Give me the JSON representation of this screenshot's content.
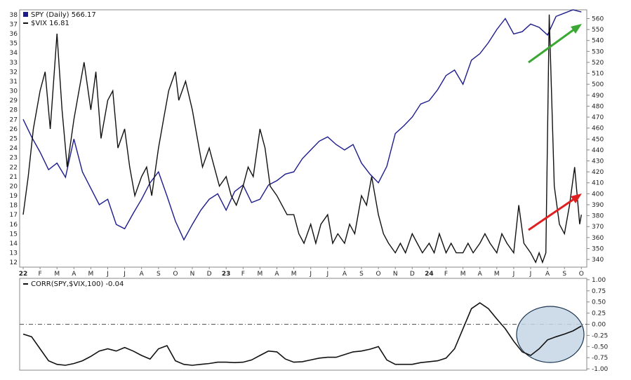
{
  "colors": {
    "spy": "#1c1c8c",
    "vix": "#111111",
    "corr": "#111111",
    "green_arrow": "#3aa832",
    "red_arrow": "#e02020",
    "circle_fill": "#c5d5e4",
    "circle_stroke": "#1a3550",
    "frame": "#888888",
    "zero_line": "#555555"
  },
  "legend": {
    "spy_label": "SPY (Daily) 566.17",
    "vix_label": "$VIX 16.81",
    "corr_label": "CORR(SPY,$VIX,100) -0.04"
  },
  "chart_data": [
    {
      "type": "line",
      "x_tick_labels": [
        "22",
        "F",
        "M",
        "A",
        "M",
        "J",
        "J",
        "A",
        "S",
        "O",
        "N",
        "D",
        "23",
        "F",
        "M",
        "A",
        "M",
        "J",
        "J",
        "A",
        "S",
        "O",
        "N",
        "D",
        "24",
        "F",
        "M",
        "A",
        "M",
        "J",
        "J",
        "A",
        "S",
        "O"
      ],
      "year_labels": [
        "22",
        "23",
        "24"
      ],
      "left_axis": {
        "series": "$VIX",
        "ylim": [
          11.5,
          38.5
        ],
        "ticks": [
          12,
          13,
          14,
          15,
          16,
          17,
          18,
          19,
          20,
          21,
          22,
          23,
          24,
          25,
          26,
          27,
          28,
          29,
          30,
          31,
          32,
          33,
          34,
          35,
          36,
          37,
          38
        ]
      },
      "right_axis": {
        "series": "SPY",
        "ylim": [
          333,
          568
        ],
        "ticks": [
          340,
          350,
          360,
          370,
          380,
          390,
          400,
          410,
          420,
          430,
          440,
          450,
          460,
          470,
          480,
          490,
          500,
          510,
          520,
          530,
          540,
          550,
          560
        ]
      },
      "series": [
        {
          "name": "SPY",
          "axis": "right",
          "months": [
            0,
            0.5,
            1,
            1.5,
            2,
            2.5,
            3,
            3.5,
            4,
            4.5,
            5,
            5.5,
            6,
            6.5,
            7,
            7.5,
            8,
            8.5,
            9,
            9.5,
            10,
            10.5,
            11,
            11.5,
            12,
            12.5,
            13,
            13.5,
            14,
            14.5,
            15,
            15.5,
            16,
            16.5,
            17,
            17.5,
            18,
            18.5,
            19,
            19.5,
            20,
            20.5,
            21,
            21.5,
            22,
            22.5,
            23,
            23.5,
            24,
            24.5,
            25,
            25.5,
            26,
            26.5,
            27,
            27.5,
            28,
            28.5,
            29,
            29.5,
            30,
            30.5,
            31,
            31.5,
            32,
            32.5,
            33
          ],
          "values": [
            468,
            452,
            438,
            422,
            428,
            415,
            450,
            420,
            405,
            390,
            395,
            372,
            368,
            382,
            395,
            410,
            420,
            398,
            375,
            358,
            372,
            385,
            395,
            400,
            385,
            402,
            408,
            392,
            395,
            408,
            412,
            418,
            420,
            432,
            440,
            448,
            452,
            445,
            440,
            445,
            428,
            418,
            410,
            425,
            455,
            462,
            470,
            482,
            485,
            495,
            508,
            513,
            500,
            522,
            528,
            538,
            550,
            560,
            546,
            548,
            555,
            552,
            545,
            562,
            565,
            568,
            566
          ]
        },
        {
          "name": "$VIX",
          "axis": "left",
          "months": [
            0,
            0.3,
            0.6,
            1,
            1.3,
            1.6,
            2,
            2.3,
            2.6,
            3,
            3.3,
            3.6,
            4,
            4.3,
            4.6,
            5,
            5.3,
            5.6,
            6,
            6.3,
            6.6,
            7,
            7.3,
            7.6,
            8,
            8.3,
            8.6,
            9,
            9.2,
            9.6,
            10,
            10.3,
            10.6,
            11,
            11.3,
            11.6,
            12,
            12.3,
            12.6,
            13,
            13.3,
            13.6,
            14,
            14.3,
            14.6,
            15,
            15.3,
            15.6,
            16,
            16.3,
            16.6,
            17,
            17.3,
            17.6,
            18,
            18.3,
            18.6,
            19,
            19.3,
            19.6,
            20,
            20.3,
            20.6,
            21,
            21.3,
            21.6,
            22,
            22.3,
            22.6,
            23,
            23.3,
            23.6,
            24,
            24.3,
            24.6,
            25,
            25.3,
            25.6,
            26,
            26.3,
            26.6,
            27,
            27.3,
            27.6,
            28,
            28.3,
            28.6,
            29,
            29.3,
            29.6,
            30,
            30.3,
            30.5,
            30.7,
            30.9,
            31.1,
            31.4,
            31.7,
            32,
            32.3,
            32.6,
            32.9,
            33
          ],
          "values": [
            17,
            21,
            26,
            30,
            32,
            26,
            36,
            28,
            22,
            27,
            30,
            33,
            28,
            32,
            25,
            29,
            30,
            24,
            26,
            22,
            19,
            21,
            22,
            19,
            24,
            27,
            30,
            32,
            29,
            31,
            28,
            25,
            22,
            24,
            22,
            20,
            21,
            19,
            18,
            20,
            22,
            21,
            26,
            24,
            20,
            19,
            18,
            17,
            17,
            15,
            14,
            16,
            14,
            16,
            17,
            14,
            15,
            14,
            16,
            15,
            19,
            18,
            21,
            17,
            15,
            14,
            13,
            14,
            13,
            15,
            14,
            13,
            14,
            13,
            15,
            13,
            14,
            13,
            13,
            14,
            13,
            14,
            15,
            14,
            13,
            15,
            14,
            13,
            18,
            14,
            13,
            12,
            13,
            12,
            13,
            38,
            20,
            16,
            15,
            18,
            22,
            16,
            17
          ]
        }
      ]
    },
    {
      "type": "line",
      "left_axis": null,
      "right_axis": {
        "ylim": [
          -1.03,
          1.03
        ],
        "ticks": [
          "1.00",
          "0.75",
          "0.50",
          "0.25",
          "0.00",
          "-0.25",
          "-0.50",
          "-0.75",
          "-1.00"
        ]
      },
      "series": [
        {
          "name": "CORR(SPY,$VIX,100)",
          "months": [
            0,
            0.5,
            1,
            1.5,
            2,
            2.5,
            3,
            3.5,
            4,
            4.5,
            5,
            5.5,
            6,
            6.5,
            7,
            7.5,
            8,
            8.5,
            9,
            9.5,
            10,
            10.5,
            11,
            11.5,
            12,
            12.5,
            13,
            13.5,
            14,
            14.5,
            15,
            15.5,
            16,
            16.5,
            17,
            17.5,
            18,
            18.5,
            19,
            19.5,
            20,
            20.5,
            21,
            21.5,
            22,
            22.5,
            23,
            23.5,
            24,
            24.5,
            25,
            25.5,
            26,
            26.5,
            27,
            27.5,
            28,
            28.5,
            29,
            29.5,
            30,
            30.5,
            31,
            31.5,
            32,
            32.5,
            33
          ],
          "values": [
            -0.22,
            -0.28,
            -0.55,
            -0.82,
            -0.9,
            -0.92,
            -0.88,
            -0.82,
            -0.72,
            -0.6,
            -0.55,
            -0.6,
            -0.52,
            -0.6,
            -0.7,
            -0.78,
            -0.55,
            -0.48,
            -0.82,
            -0.9,
            -0.92,
            -0.9,
            -0.88,
            -0.85,
            -0.85,
            -0.86,
            -0.85,
            -0.8,
            -0.7,
            -0.6,
            -0.62,
            -0.78,
            -0.85,
            -0.84,
            -0.8,
            -0.76,
            -0.74,
            -0.74,
            -0.68,
            -0.62,
            -0.6,
            -0.56,
            -0.5,
            -0.8,
            -0.9,
            -0.9,
            -0.9,
            -0.86,
            -0.84,
            -0.82,
            -0.76,
            -0.55,
            -0.1,
            0.35,
            0.48,
            0.35,
            0.12,
            -0.1,
            -0.38,
            -0.62,
            -0.7,
            -0.55,
            -0.35,
            -0.28,
            -0.22,
            -0.15,
            -0.04
          ]
        }
      ]
    }
  ]
}
